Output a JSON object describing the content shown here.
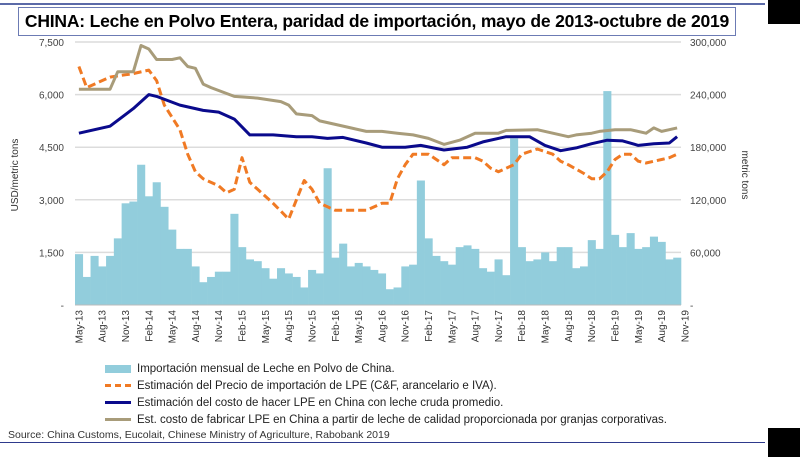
{
  "title": "CHINA:  Leche en Polvo Entera, paridad de importación, mayo de 2013-octubre de 2019",
  "source": "Source: China Customs, Eucolait, Chinese Ministry of Agriculture, Rabobank 2019",
  "chart_data": {
    "type": "bar+line",
    "title": "CHINA:  Leche en Polvo Entera, paridad de importación, mayo de 2013-octubre de 2019",
    "ylabel": "USD/metric tons",
    "y2label": "metric tons",
    "ylim": [
      0,
      7500
    ],
    "y2lim": [
      0,
      300000
    ],
    "yticks": [
      "-",
      "1,500",
      "3,000",
      "4,500",
      "6,000",
      "7,500"
    ],
    "y2ticks": [
      "-",
      "60,000",
      "120,000",
      "180,000",
      "240,000",
      "300,000"
    ],
    "xticks": [
      "May-13",
      "Aug-13",
      "Nov-13",
      "Feb-14",
      "May-14",
      "Aug-14",
      "Nov-14",
      "Feb-15",
      "May-15",
      "Aug-15",
      "Nov-15",
      "Feb-16",
      "May-16",
      "Aug-16",
      "Nov-16",
      "Feb-17",
      "May-17",
      "Aug-17",
      "Nov-17",
      "Feb-18",
      "May-18",
      "Aug-18",
      "Nov-18",
      "Feb-19",
      "May-19",
      "Aug-19",
      "Nov-19"
    ],
    "grid": true,
    "legend_placement": "bottom",
    "categories": [
      "May-13",
      "Jun-13",
      "Jul-13",
      "Aug-13",
      "Sep-13",
      "Oct-13",
      "Nov-13",
      "Dec-13",
      "Jan-14",
      "Feb-14",
      "Mar-14",
      "Apr-14",
      "May-14",
      "Jun-14",
      "Jul-14",
      "Aug-14",
      "Sep-14",
      "Oct-14",
      "Nov-14",
      "Dec-14",
      "Jan-15",
      "Feb-15",
      "Mar-15",
      "Apr-15",
      "May-15",
      "Jun-15",
      "Jul-15",
      "Aug-15",
      "Sep-15",
      "Oct-15",
      "Nov-15",
      "Dec-15",
      "Jan-16",
      "Feb-16",
      "Mar-16",
      "Apr-16",
      "May-16",
      "Jun-16",
      "Jul-16",
      "Aug-16",
      "Sep-16",
      "Oct-16",
      "Nov-16",
      "Dec-16",
      "Jan-17",
      "Feb-17",
      "Mar-17",
      "Apr-17",
      "May-17",
      "Jun-17",
      "Jul-17",
      "Aug-17",
      "Sep-17",
      "Oct-17",
      "Nov-17",
      "Dec-17",
      "Jan-18",
      "Feb-18",
      "Mar-18",
      "Apr-18",
      "May-18",
      "Jun-18",
      "Jul-18",
      "Aug-18",
      "Sep-18",
      "Oct-18",
      "Nov-18",
      "Dec-18",
      "Jan-19",
      "Feb-19",
      "Mar-19",
      "Apr-19",
      "May-19",
      "Jun-19",
      "Jul-19",
      "Aug-19",
      "Sep-19",
      "Oct-19"
    ],
    "bars": {
      "name": "Importación mensual de Leche en Polvo de China.",
      "axis": "right",
      "color": "#92cddc",
      "values": [
        58000,
        32000,
        56000,
        44000,
        56000,
        76000,
        116000,
        118000,
        160000,
        124000,
        140000,
        112000,
        86000,
        64000,
        64000,
        44000,
        26000,
        32000,
        38000,
        38000,
        104000,
        66000,
        52000,
        50000,
        42000,
        30000,
        42000,
        36000,
        32000,
        20000,
        40000,
        36000,
        156000,
        54000,
        70000,
        44000,
        48000,
        44000,
        40000,
        36000,
        18000,
        20000,
        44000,
        46000,
        142000,
        76000,
        56000,
        50000,
        46000,
        66000,
        68000,
        64000,
        42000,
        38000,
        52000,
        34000,
        190000,
        66000,
        50000,
        52000,
        60000,
        50000,
        66000,
        66000,
        42000,
        44000,
        74000,
        64000,
        244000,
        80000,
        66000,
        82000,
        64000,
        66000,
        78000,
        72000,
        52000,
        54000
      ]
    },
    "series": [
      {
        "name": "Estimación del Precio de importación de LPE (C&F, arancelario e IVA).",
        "color": "#f07a24",
        "style": "dashed",
        "points": [
          [
            "May-13",
            6800
          ],
          [
            "Jun-13",
            6200
          ],
          [
            "Sep-13",
            6500
          ],
          [
            "Dec-13",
            6600
          ],
          [
            "Feb-14",
            6700
          ],
          [
            "Mar-14",
            6400
          ],
          [
            "Apr-14",
            5700
          ],
          [
            "Jun-14",
            5000
          ],
          [
            "Jul-14",
            4300
          ],
          [
            "Aug-14",
            3800
          ],
          [
            "Sep-14",
            3600
          ],
          [
            "Nov-14",
            3400
          ],
          [
            "Dec-14",
            3200
          ],
          [
            "Jan-15",
            3300
          ],
          [
            "Feb-15",
            4200
          ],
          [
            "Mar-15",
            3500
          ],
          [
            "Apr-15",
            3300
          ],
          [
            "Jun-15",
            2900
          ],
          [
            "Aug-15",
            2450
          ],
          [
            "Oct-15",
            3550
          ],
          [
            "Nov-15",
            3300
          ],
          [
            "Dec-15",
            2900
          ],
          [
            "Jan-16",
            2800
          ],
          [
            "Feb-16",
            2700
          ],
          [
            "Jun-16",
            2700
          ],
          [
            "Aug-16",
            2900
          ],
          [
            "Sep-16",
            2900
          ],
          [
            "Oct-16",
            3600
          ],
          [
            "Nov-16",
            4000
          ],
          [
            "Dec-16",
            4300
          ],
          [
            "Feb-17",
            4300
          ],
          [
            "Apr-17",
            4000
          ],
          [
            "May-17",
            4200
          ],
          [
            "Jul-17",
            4200
          ],
          [
            "Aug-17",
            4200
          ],
          [
            "Sep-17",
            4100
          ],
          [
            "Oct-17",
            3900
          ],
          [
            "Nov-17",
            3800
          ],
          [
            "Jan-18",
            4000
          ],
          [
            "Feb-18",
            4300
          ],
          [
            "Apr-18",
            4450
          ],
          [
            "Jun-18",
            4300
          ],
          [
            "Jul-18",
            4100
          ],
          [
            "Aug-18",
            4000
          ],
          [
            "Oct-18",
            3750
          ],
          [
            "Nov-18",
            3600
          ],
          [
            "Dec-18",
            3600
          ],
          [
            "Jan-19",
            3800
          ],
          [
            "Feb-19",
            4150
          ],
          [
            "Mar-19",
            4300
          ],
          [
            "Apr-19",
            4300
          ],
          [
            "May-19",
            4100
          ],
          [
            "Jun-19",
            4050
          ],
          [
            "Aug-19",
            4150
          ],
          [
            "Sep-19",
            4200
          ],
          [
            "Oct-19",
            4300
          ]
        ]
      },
      {
        "name": "Estimación del costo de hacer LPE en China con leche cruda promedio.",
        "color": "#0a0a8c",
        "style": "solid",
        "points": [
          [
            "May-13",
            4900
          ],
          [
            "Sep-13",
            5100
          ],
          [
            "Dec-13",
            5600
          ],
          [
            "Feb-14",
            6000
          ],
          [
            "Mar-14",
            5950
          ],
          [
            "Jun-14",
            5700
          ],
          [
            "Sep-14",
            5550
          ],
          [
            "Nov-14",
            5500
          ],
          [
            "Jan-15",
            5300
          ],
          [
            "Mar-15",
            4850
          ],
          [
            "Jun-15",
            4850
          ],
          [
            "Sep-15",
            4800
          ],
          [
            "Nov-15",
            4800
          ],
          [
            "Jan-16",
            4750
          ],
          [
            "Mar-16",
            4780
          ],
          [
            "Jun-16",
            4620
          ],
          [
            "Aug-16",
            4500
          ],
          [
            "Nov-16",
            4500
          ],
          [
            "Jan-17",
            4550
          ],
          [
            "Apr-17",
            4420
          ],
          [
            "Jul-17",
            4500
          ],
          [
            "Sep-17",
            4650
          ],
          [
            "Dec-17",
            4800
          ],
          [
            "Mar-18",
            4800
          ],
          [
            "May-18",
            4550
          ],
          [
            "Jul-18",
            4400
          ],
          [
            "Sep-18",
            4480
          ],
          [
            "Nov-18",
            4600
          ],
          [
            "Jan-19",
            4700
          ],
          [
            "Mar-19",
            4680
          ],
          [
            "May-19",
            4550
          ],
          [
            "Jul-19",
            4600
          ],
          [
            "Sep-19",
            4620
          ],
          [
            "Oct-19",
            4800
          ]
        ]
      },
      {
        "name": "Est. costo de fabricar LPE en China a partir de leche de calidad proporcionada por granjas corporativas.",
        "color": "#a89c7a",
        "style": "solid",
        "points": [
          [
            "May-13",
            6150
          ],
          [
            "Sep-13",
            6150
          ],
          [
            "Oct-13",
            6650
          ],
          [
            "Dec-13",
            6650
          ],
          [
            "Jan-14",
            7400
          ],
          [
            "Feb-14",
            7300
          ],
          [
            "Mar-14",
            7000
          ],
          [
            "May-14",
            7000
          ],
          [
            "Jun-14",
            7050
          ],
          [
            "Jul-14",
            6800
          ],
          [
            "Aug-14",
            6750
          ],
          [
            "Sep-14",
            6300
          ],
          [
            "Oct-14",
            6200
          ],
          [
            "Jan-15",
            5950
          ],
          [
            "Apr-15",
            5900
          ],
          [
            "Jul-15",
            5800
          ],
          [
            "Aug-15",
            5700
          ],
          [
            "Sep-15",
            5450
          ],
          [
            "Nov-15",
            5400
          ],
          [
            "Dec-15",
            5250
          ],
          [
            "Feb-16",
            5150
          ],
          [
            "Apr-16",
            5050
          ],
          [
            "Jun-16",
            4950
          ],
          [
            "Aug-16",
            4950
          ],
          [
            "Oct-16",
            4900
          ],
          [
            "Dec-16",
            4850
          ],
          [
            "Feb-17",
            4750
          ],
          [
            "Apr-17",
            4580
          ],
          [
            "Jun-17",
            4700
          ],
          [
            "Aug-17",
            4900
          ],
          [
            "Nov-17",
            4900
          ],
          [
            "Dec-17",
            4980
          ],
          [
            "Apr-18",
            5000
          ],
          [
            "Jun-18",
            4900
          ],
          [
            "Aug-18",
            4800
          ],
          [
            "Sep-18",
            4850
          ],
          [
            "Nov-18",
            4900
          ],
          [
            "Dec-18",
            4950
          ],
          [
            "Feb-19",
            5000
          ],
          [
            "Apr-19",
            5000
          ],
          [
            "Jun-19",
            4900
          ],
          [
            "Jul-19",
            5050
          ],
          [
            "Aug-19",
            4950
          ],
          [
            "Sep-19",
            5000
          ],
          [
            "Oct-19",
            5050
          ]
        ]
      }
    ]
  }
}
